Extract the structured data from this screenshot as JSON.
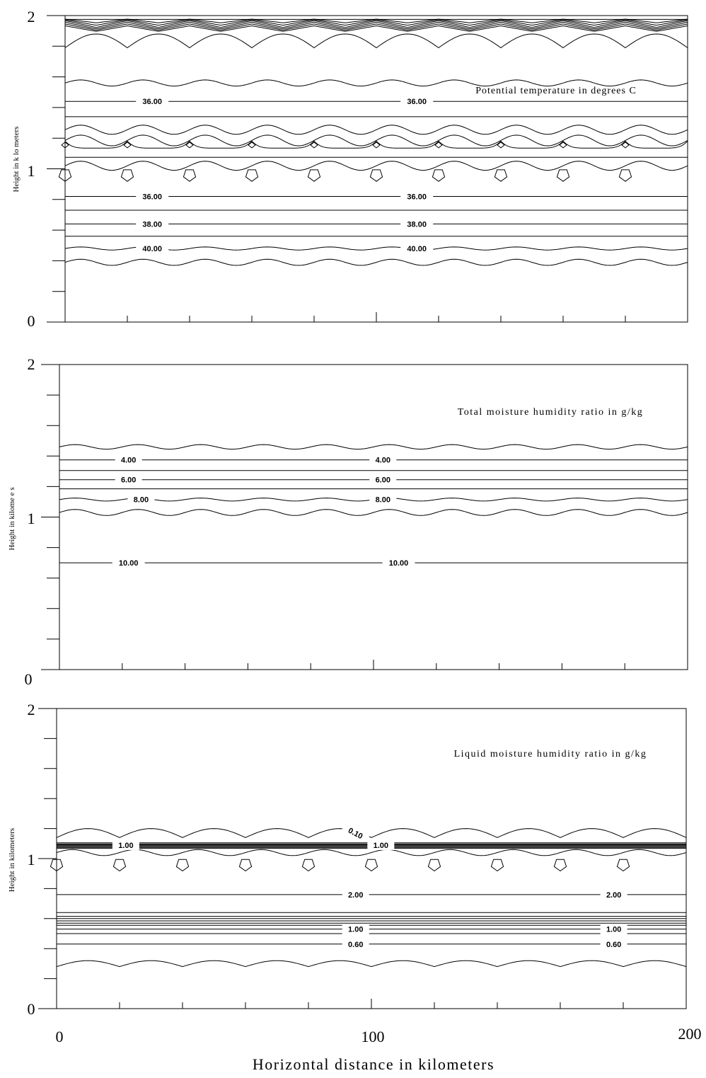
{
  "chart_data": [
    {
      "type": "contour",
      "title": "Potential temperature in degrees C",
      "ylabel": "Height in k lo meters",
      "xlim": [
        0,
        200
      ],
      "ylim": [
        0,
        2
      ],
      "y_tick_labels": [
        "0",
        "1",
        "2"
      ],
      "contour_labels": [
        {
          "text": "36.00",
          "x": 28,
          "y": 1.44
        },
        {
          "text": "36.00",
          "x": 113,
          "y": 1.44
        },
        {
          "text": "36.00",
          "x": 28,
          "y": 0.82
        },
        {
          "text": "36.00",
          "x": 113,
          "y": 0.82
        },
        {
          "text": "38.00",
          "x": 28,
          "y": 0.64
        },
        {
          "text": "38.00",
          "x": 113,
          "y": 0.64
        },
        {
          "text": "40.00",
          "x": 28,
          "y": 0.48
        },
        {
          "text": "40.00",
          "x": 113,
          "y": 0.48
        }
      ],
      "contours": [
        {
          "y": 1.975,
          "amp": 0.0,
          "kind": "flat"
        },
        {
          "y": 1.965,
          "amp": 0.012,
          "kind": "zig"
        },
        {
          "y": 1.955,
          "amp": 0.018,
          "kind": "zig"
        },
        {
          "y": 1.945,
          "amp": 0.022,
          "kind": "zig"
        },
        {
          "y": 1.935,
          "amp": 0.022,
          "kind": "zig"
        },
        {
          "y": 1.925,
          "amp": 0.02,
          "kind": "zig"
        },
        {
          "y": 1.915,
          "amp": 0.018,
          "kind": "zig"
        },
        {
          "y": 1.88,
          "amp": 0.09,
          "kind": "scallop"
        },
        {
          "y": 1.56,
          "amp": 0.02,
          "kind": "wave"
        },
        {
          "y": 1.44,
          "amp": 0.0,
          "kind": "flat",
          "label": "36.00"
        },
        {
          "y": 1.34,
          "amp": 0.0,
          "kind": "flat"
        },
        {
          "y": 1.255,
          "amp": 0.03,
          "kind": "wave"
        },
        {
          "y": 1.185,
          "amp": 0.035,
          "kind": "wave"
        },
        {
          "y": 1.135,
          "amp": 0.045,
          "kind": "peaks"
        },
        {
          "y": 1.075,
          "amp": 0.0,
          "kind": "flat"
        },
        {
          "y": 1.02,
          "amp": 0.03,
          "kind": "wave"
        },
        {
          "y": 0.82,
          "amp": 0.0,
          "kind": "flat",
          "label": "36.00"
        },
        {
          "y": 0.73,
          "amp": 0.0,
          "kind": "flat"
        },
        {
          "y": 0.64,
          "amp": 0.0,
          "kind": "flat",
          "label": "38.00"
        },
        {
          "y": 0.56,
          "amp": 0.0,
          "kind": "flat"
        },
        {
          "y": 0.48,
          "amp": 0.01,
          "kind": "wave",
          "label": "40.00"
        },
        {
          "y": 0.39,
          "amp": 0.02,
          "kind": "wave"
        }
      ],
      "closed_cells": {
        "y": 0.96,
        "count": 10,
        "kind": "pentagon"
      },
      "small_cells": {
        "y": 1.155,
        "count": 10
      }
    },
    {
      "type": "contour",
      "title": "Total moisture humidity ratio in g/kg",
      "ylabel": "Height in kilome e s",
      "xlim": [
        0,
        200
      ],
      "ylim": [
        0,
        2
      ],
      "y_tick_labels": [
        "0",
        "1",
        "2"
      ],
      "contour_labels": [
        {
          "text": "4.00",
          "x": 22,
          "y": 1.375
        },
        {
          "text": "4.00",
          "x": 103,
          "y": 1.375
        },
        {
          "text": "6.00",
          "x": 22,
          "y": 1.245
        },
        {
          "text": "6.00",
          "x": 103,
          "y": 1.245
        },
        {
          "text": "8.00",
          "x": 26,
          "y": 1.115
        },
        {
          "text": "8.00",
          "x": 103,
          "y": 1.115
        },
        {
          "text": "10.00",
          "x": 22,
          "y": 0.7
        },
        {
          "text": "10.00",
          "x": 108,
          "y": 0.7
        }
      ],
      "contours": [
        {
          "y": 1.46,
          "amp": 0.015,
          "kind": "wave"
        },
        {
          "y": 1.375,
          "amp": 0.0,
          "kind": "flat",
          "label": "4.00"
        },
        {
          "y": 1.305,
          "amp": 0.0,
          "kind": "flat"
        },
        {
          "y": 1.245,
          "amp": 0.0,
          "kind": "flat",
          "label": "6.00"
        },
        {
          "y": 1.185,
          "amp": 0.0,
          "kind": "flat"
        },
        {
          "y": 1.115,
          "amp": 0.01,
          "kind": "wave",
          "label": "8.00"
        },
        {
          "y": 1.03,
          "amp": 0.02,
          "kind": "wave"
        },
        {
          "y": 0.7,
          "amp": 0.0,
          "kind": "flat",
          "label": "10.00"
        }
      ]
    },
    {
      "type": "contour",
      "title": "Liquid moisture humidity ratio in g/kg",
      "ylabel": "Height in kilometers",
      "xlim": [
        0,
        200
      ],
      "ylim": [
        0,
        2
      ],
      "xlabel": "Horizontal distance in kilometers",
      "x_tick_labels": [
        "0",
        "100",
        "200"
      ],
      "y_tick_labels": [
        "0",
        "1",
        "2"
      ],
      "contour_labels": [
        {
          "text": "0.10",
          "x": 95,
          "y": 1.17
        },
        {
          "text": "1.00",
          "x": 22,
          "y": 1.09
        },
        {
          "text": "1.00",
          "x": 103,
          "y": 1.09
        },
        {
          "text": "2.00",
          "x": 95,
          "y": 0.76
        },
        {
          "text": "2.00",
          "x": 177,
          "y": 0.76
        },
        {
          "text": "1.00",
          "x": 95,
          "y": 0.53
        },
        {
          "text": "1.00",
          "x": 177,
          "y": 0.53
        },
        {
          "text": "0.60",
          "x": 95,
          "y": 0.43
        },
        {
          "text": "0.60",
          "x": 177,
          "y": 0.43
        }
      ],
      "contours": [
        {
          "y": 1.2,
          "amp": 0.06,
          "kind": "scallop"
        },
        {
          "y": 1.105,
          "amp": 0.0,
          "kind": "flat"
        },
        {
          "y": 1.098,
          "amp": 0.0,
          "kind": "flat"
        },
        {
          "y": 1.092,
          "amp": 0.0,
          "kind": "flat"
        },
        {
          "y": 1.086,
          "amp": 0.0,
          "kind": "flat",
          "label": "1.00"
        },
        {
          "y": 1.08,
          "amp": 0.0,
          "kind": "flat"
        },
        {
          "y": 1.074,
          "amp": 0.0,
          "kind": "flat"
        },
        {
          "y": 1.068,
          "amp": 0.0,
          "kind": "flat"
        },
        {
          "y": 1.04,
          "amp": 0.02,
          "kind": "wave"
        },
        {
          "y": 0.76,
          "amp": 0.0,
          "kind": "flat",
          "label": "2.00"
        },
        {
          "y": 0.64,
          "amp": 0.0,
          "kind": "flat"
        },
        {
          "y": 0.615,
          "amp": 0.0,
          "kind": "flat"
        },
        {
          "y": 0.6,
          "amp": 0.0,
          "kind": "flat"
        },
        {
          "y": 0.585,
          "amp": 0.0,
          "kind": "flat"
        },
        {
          "y": 0.57,
          "amp": 0.0,
          "kind": "flat"
        },
        {
          "y": 0.555,
          "amp": 0.0,
          "kind": "flat"
        },
        {
          "y": 0.53,
          "amp": 0.0,
          "kind": "flat",
          "label": "1.00"
        },
        {
          "y": 0.5,
          "amp": 0.0,
          "kind": "flat"
        },
        {
          "y": 0.43,
          "amp": 0.0,
          "kind": "flat",
          "label": "0.60"
        },
        {
          "y": 0.32,
          "amp": 0.04,
          "kind": "scallop"
        }
      ],
      "closed_cells": {
        "y": 0.96,
        "count": 10,
        "kind": "pentagon"
      }
    }
  ]
}
